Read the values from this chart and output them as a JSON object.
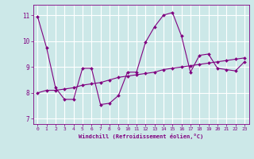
{
  "xlabel": "Windchill (Refroidissement éolien,°C)",
  "background_color": "#cce8e8",
  "grid_color": "#ffffff",
  "line_color": "#800080",
  "x_ticks": [
    0,
    1,
    2,
    3,
    4,
    5,
    6,
    7,
    8,
    9,
    10,
    11,
    12,
    13,
    14,
    15,
    16,
    17,
    18,
    19,
    20,
    21,
    22,
    23
  ],
  "y_ticks": [
    7,
    8,
    9,
    10,
    11
  ],
  "ylim": [
    6.8,
    11.4
  ],
  "xlim": [
    -0.5,
    23.5
  ],
  "curve1_x": [
    0,
    1,
    2,
    3,
    4,
    5,
    6,
    7,
    8,
    9,
    10,
    11,
    12,
    13,
    14,
    15,
    16,
    17,
    18,
    19,
    20,
    21,
    22,
    23
  ],
  "curve1_y": [
    10.95,
    9.75,
    8.2,
    7.75,
    7.75,
    8.95,
    8.95,
    7.55,
    7.6,
    7.9,
    8.8,
    8.8,
    9.95,
    10.55,
    11.0,
    11.1,
    10.2,
    8.8,
    9.45,
    9.5,
    8.95,
    8.9,
    8.85,
    9.2
  ],
  "curve2_x": [
    0,
    1,
    2,
    3,
    4,
    5,
    6,
    7,
    8,
    9,
    10,
    11,
    12,
    13,
    14,
    15,
    16,
    17,
    18,
    19,
    20,
    21,
    22,
    23
  ],
  "curve2_y": [
    8.0,
    8.1,
    8.1,
    8.15,
    8.2,
    8.3,
    8.35,
    8.4,
    8.5,
    8.6,
    8.65,
    8.7,
    8.75,
    8.8,
    8.9,
    8.95,
    9.0,
    9.05,
    9.1,
    9.15,
    9.2,
    9.25,
    9.3,
    9.35
  ]
}
